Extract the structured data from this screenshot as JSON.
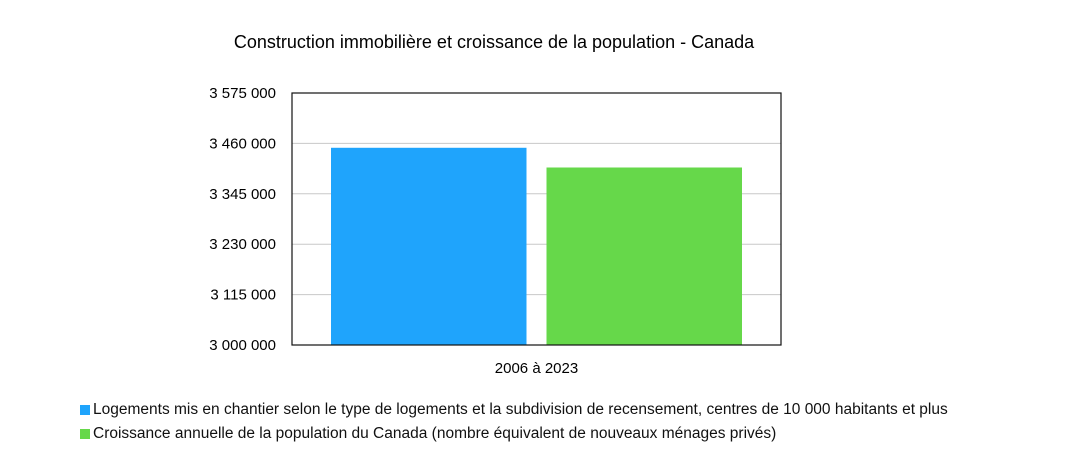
{
  "chart_data": {
    "type": "bar",
    "title": "Construction immobilière et croissance de la population - Canada",
    "categories": [
      "2006 à 2023"
    ],
    "ylim": [
      3000000,
      3575000
    ],
    "yticks": [
      3000000,
      3115000,
      3230000,
      3345000,
      3460000,
      3575000
    ],
    "ytick_labels": [
      "3 000 000",
      "3 115 000",
      "3 230 000",
      "3 345 000",
      "3 460 000",
      "3 575 000"
    ],
    "grid": true,
    "legend_position": "bottom",
    "series": [
      {
        "name": "Logements mis en chantier selon le type de logements et la subdivision de recensement, centres de 10 000 habitants et plus",
        "values": [
          3450000
        ],
        "color": "#1fa4fc"
      },
      {
        "name": "Croissance annuelle de la population du Canada (nombre équivalent de nouveaux ménages privés)",
        "values": [
          3405000
        ],
        "color": "#66d84a"
      }
    ]
  }
}
